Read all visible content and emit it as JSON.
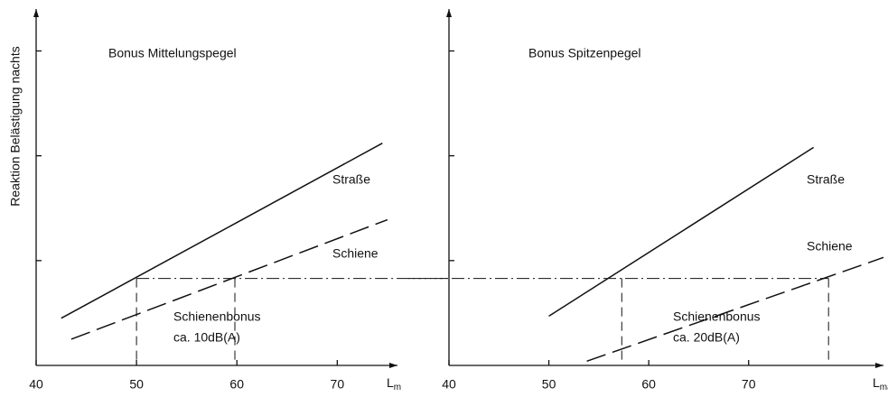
{
  "chart_data": [
    {
      "type": "line",
      "title": "Bonus Mittelungspegel",
      "ylabel": "Reaktion Belästigung nachts",
      "xlabel": "L",
      "xlabel_sub": "m",
      "xlim": [
        40,
        76
      ],
      "xticks": [
        40,
        50,
        60,
        70
      ],
      "ylim": [
        0,
        3.4
      ],
      "yticks": [
        1,
        2,
        3
      ],
      "series": [
        {
          "name": "Straße",
          "color": "#111111",
          "style": "solid",
          "x": [
            42.5,
            74.5
          ],
          "values": [
            0.45,
            2.12
          ]
        },
        {
          "name": "Schiene",
          "color": "#111111",
          "style": "dashed",
          "x": [
            43.5,
            75
          ],
          "values": [
            0.25,
            1.39
          ]
        }
      ],
      "reference_lines": {
        "y": 0.83,
        "x": [
          50,
          59.8
        ]
      },
      "annotations": [
        "Schienenbonus",
        "ca. 10dB(A)"
      ]
    },
    {
      "type": "line",
      "title": "Bonus Spitzenpegel",
      "xlabel": "L",
      "xlabel_sub": "max",
      "xlim": [
        40,
        83.5
      ],
      "xticks": [
        40,
        50,
        60,
        70
      ],
      "ylim": [
        0,
        3.4
      ],
      "yticks": [
        1,
        2,
        3
      ],
      "series": [
        {
          "name": "Straße",
          "color": "#111111",
          "style": "solid",
          "x": [
            50,
            76.5
          ],
          "values": [
            0.47,
            2.08
          ]
        },
        {
          "name": "Schiene",
          "color": "#111111",
          "style": "dashed",
          "x": [
            53.8,
            83.5
          ],
          "values": [
            0.04,
            1.03
          ]
        }
      ],
      "reference_lines": {
        "y": 0.83,
        "x": [
          57.3,
          78
        ]
      },
      "annotations": [
        "Schienenbonus",
        "ca. 20dB(A)"
      ]
    }
  ]
}
